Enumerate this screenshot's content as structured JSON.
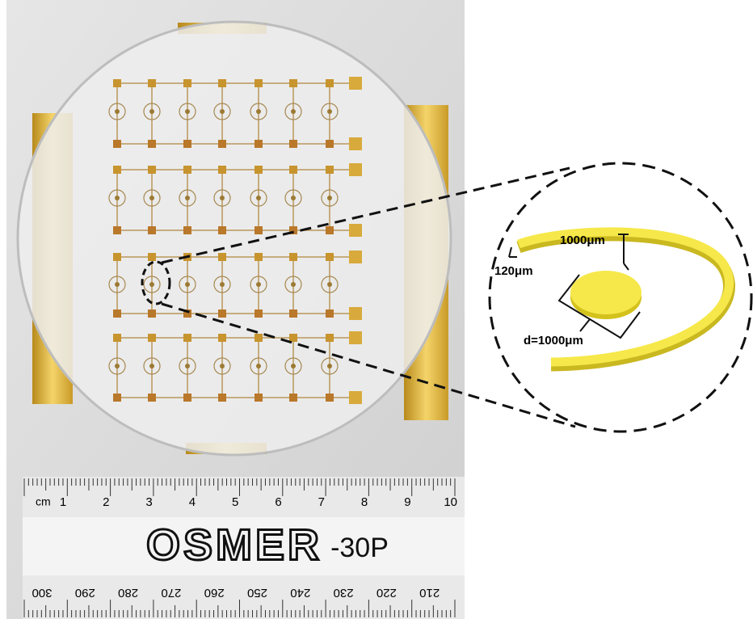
{
  "labels": {
    "gap_width": "1000μm",
    "ring_width": "120μm",
    "disc_diameter": "d=1000μm"
  },
  "ruler": {
    "unit": "cm",
    "top_numbers": [
      "1",
      "2",
      "3",
      "4",
      "5",
      "6",
      "7",
      "8",
      "9",
      "10"
    ],
    "brand": "OSMER",
    "model": "-30P",
    "bottom_numbers": [
      "300",
      "290",
      "280",
      "270",
      "260",
      "250",
      "240",
      "230",
      "220",
      "210"
    ]
  }
}
